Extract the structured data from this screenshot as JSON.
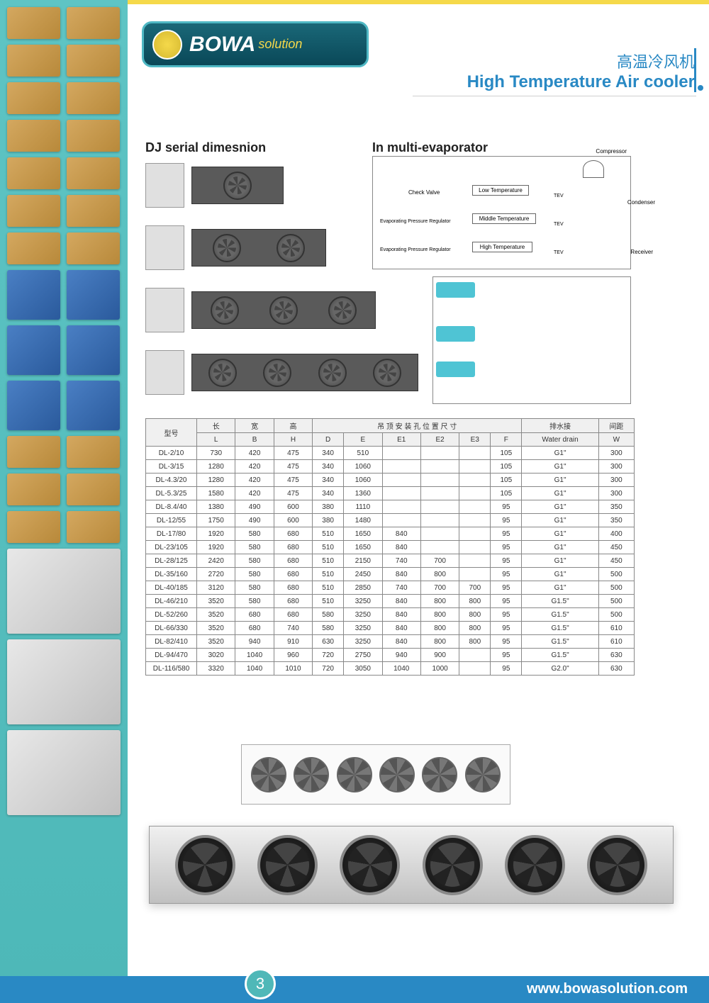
{
  "logo": {
    "brand": "BOWA",
    "suffix": "solution"
  },
  "header": {
    "cn": "高温冷风机",
    "en": "High Temperature Air cooler"
  },
  "sections": {
    "dj": "DJ serial dimesnion",
    "evap": "In multi-evaporator"
  },
  "evap_labels": {
    "check": "Check Valve",
    "epr1": "Evaporating Pressure Regulator",
    "epr2": "Evaporating Pressure Regulator",
    "low": "Low Temperature",
    "mid": "Middle Temperature",
    "high": "High Temperature",
    "comp": "Compressor",
    "cond": "Condenser",
    "recv": "Receiver",
    "tev": "TEV"
  },
  "table": {
    "group_headers": {
      "model": "型号",
      "len": "长",
      "wid": "宽",
      "hei": "高",
      "mount": "吊 顶 安 装 孔 位 置 尺 寸",
      "drain": "排水接",
      "dist": "间距"
    },
    "col_headers": [
      "L",
      "B",
      "H",
      "D",
      "E",
      "E1",
      "E2",
      "E3",
      "F",
      "Water drain",
      "W"
    ],
    "rows": [
      [
        "DL-2/10",
        "730",
        "420",
        "475",
        "340",
        "510",
        "",
        "",
        "",
        "105",
        "G1\"",
        "300"
      ],
      [
        "DL-3/15",
        "1280",
        "420",
        "475",
        "340",
        "1060",
        "",
        "",
        "",
        "105",
        "G1\"",
        "300"
      ],
      [
        "DL-4.3/20",
        "1280",
        "420",
        "475",
        "340",
        "1060",
        "",
        "",
        "",
        "105",
        "G1\"",
        "300"
      ],
      [
        "DL-5.3/25",
        "1580",
        "420",
        "475",
        "340",
        "1360",
        "",
        "",
        "",
        "105",
        "G1\"",
        "300"
      ],
      [
        "DL-8.4/40",
        "1380",
        "490",
        "600",
        "380",
        "1110",
        "",
        "",
        "",
        "95",
        "G1\"",
        "350"
      ],
      [
        "DL-12/55",
        "1750",
        "490",
        "600",
        "380",
        "1480",
        "",
        "",
        "",
        "95",
        "G1\"",
        "350"
      ],
      [
        "DL-17/80",
        "1920",
        "580",
        "680",
        "510",
        "1650",
        "840",
        "",
        "",
        "95",
        "G1\"",
        "400"
      ],
      [
        "DL-23/105",
        "1920",
        "580",
        "680",
        "510",
        "1650",
        "840",
        "",
        "",
        "95",
        "G1\"",
        "450"
      ],
      [
        "DL-28/125",
        "2420",
        "580",
        "680",
        "510",
        "2150",
        "740",
        "700",
        "",
        "95",
        "G1\"",
        "450"
      ],
      [
        "DL-35/160",
        "2720",
        "580",
        "680",
        "510",
        "2450",
        "840",
        "800",
        "",
        "95",
        "G1\"",
        "500"
      ],
      [
        "DL-40/185",
        "3120",
        "580",
        "680",
        "510",
        "2850",
        "740",
        "700",
        "700",
        "95",
        "G1\"",
        "500"
      ],
      [
        "DL-46/210",
        "3520",
        "580",
        "680",
        "510",
        "3250",
        "840",
        "800",
        "800",
        "95",
        "G1.5\"",
        "500"
      ],
      [
        "DL-52/260",
        "3520",
        "680",
        "680",
        "580",
        "3250",
        "840",
        "800",
        "800",
        "95",
        "G1.5\"",
        "500"
      ],
      [
        "DL-66/330",
        "3520",
        "680",
        "740",
        "580",
        "3250",
        "840",
        "800",
        "800",
        "95",
        "G1.5\"",
        "610"
      ],
      [
        "DL-82/410",
        "3520",
        "940",
        "910",
        "630",
        "3250",
        "840",
        "800",
        "800",
        "95",
        "G1.5\"",
        "610"
      ],
      [
        "DL-94/470",
        "3020",
        "1040",
        "960",
        "720",
        "2750",
        "940",
        "900",
        "",
        "95",
        "G1.5\"",
        "630"
      ],
      [
        "DL-116/580",
        "3320",
        "1040",
        "1010",
        "720",
        "3050",
        "1040",
        "1000",
        "",
        "95",
        "G2.0\"",
        "630"
      ]
    ]
  },
  "footer": {
    "url": "www.bowasolution.com",
    "page": "3"
  },
  "colors": {
    "teal": "#4fb8b8",
    "blue": "#2989c4",
    "yellow": "#f5d94a",
    "bg": "#ffffff",
    "border": "#888888",
    "text": "#333333"
  }
}
